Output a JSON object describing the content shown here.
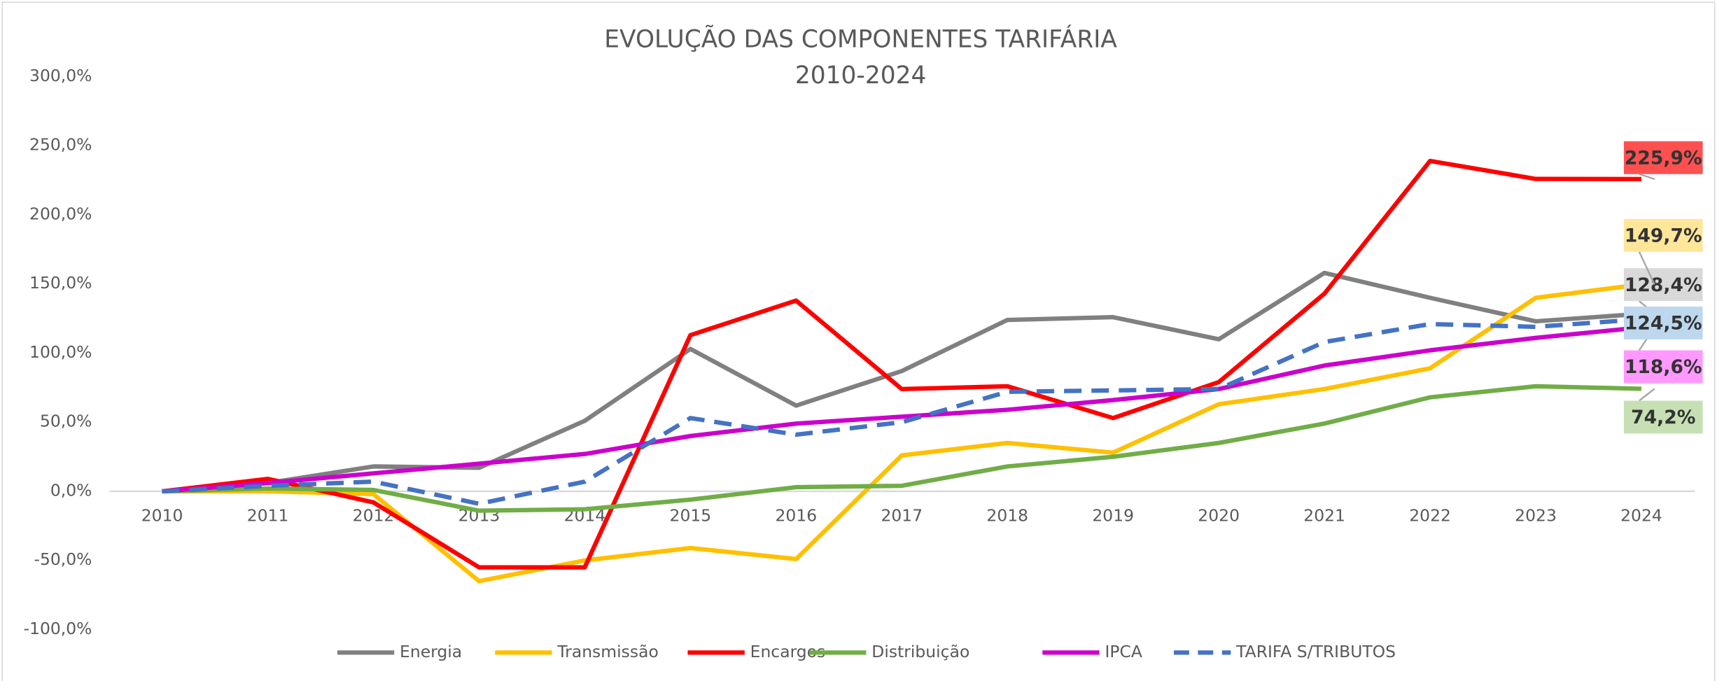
{
  "chart_data": {
    "type": "line",
    "title": "EVOLUÇÃO DAS COMPONENTES TARIFÁRIA",
    "subtitle": "2010-2024",
    "categories": [
      "2010",
      "2011",
      "2012",
      "2013",
      "2014",
      "2015",
      "2016",
      "2017",
      "2018",
      "2019",
      "2020",
      "2021",
      "2022",
      "2023",
      "2024"
    ],
    "series": [
      {
        "name": "Energia",
        "color": "#808080",
        "values": [
          0,
          6,
          18,
          17,
          51,
          103,
          62,
          87,
          124,
          126,
          110,
          158,
          140,
          123,
          128.4
        ],
        "value_labels": [
          null,
          null,
          null,
          null,
          null,
          null,
          null,
          null,
          null,
          null,
          null,
          null,
          null,
          null,
          "128,4%"
        ],
        "label_color": "#d9d9d9"
      },
      {
        "name": "Transmissão",
        "color": "#ffc000",
        "values": [
          0,
          0,
          -2,
          -65,
          -50,
          -41,
          -49,
          26,
          35,
          28,
          63,
          74,
          89,
          140,
          149.7
        ],
        "value_labels": [
          null,
          null,
          null,
          null,
          null,
          null,
          null,
          null,
          null,
          null,
          null,
          null,
          null,
          null,
          "149,7%"
        ],
        "label_color": "#ffe699"
      },
      {
        "name": "Encargos",
        "color": "#ff0000",
        "values": [
          0,
          9,
          -8,
          -55,
          -55,
          113,
          138,
          74,
          76,
          53,
          79,
          143,
          239,
          226,
          225.9
        ],
        "value_labels": [
          null,
          null,
          null,
          null,
          null,
          null,
          null,
          null,
          null,
          null,
          null,
          null,
          null,
          null,
          "225,9%"
        ],
        "label_color": "#ff5050"
      },
      {
        "name": "Distribuição",
        "color": "#70ad47",
        "values": [
          0,
          2,
          1,
          -14,
          -13,
          -6,
          3,
          4,
          18,
          25,
          35,
          49,
          68,
          76,
          74.2
        ],
        "value_labels": [
          null,
          null,
          null,
          null,
          null,
          null,
          null,
          null,
          null,
          null,
          null,
          null,
          null,
          null,
          "74,2%"
        ],
        "label_color": "#c6e0b4"
      },
      {
        "name": "IPCA",
        "color": "#cc00cc",
        "values": [
          0,
          6,
          13,
          20,
          27,
          40,
          49,
          54,
          59,
          66,
          74,
          91,
          102,
          111,
          118.6
        ],
        "value_labels": [
          null,
          null,
          null,
          null,
          null,
          null,
          null,
          null,
          null,
          null,
          null,
          null,
          null,
          null,
          "118,6%"
        ],
        "label_color": "#ff99ff"
      },
      {
        "name": "TARIFA S/TRIBUTOS",
        "color": "#4472c4",
        "dash": true,
        "values": [
          0,
          4,
          7,
          -9,
          7,
          53,
          41,
          50,
          72,
          73,
          74,
          108,
          121,
          119,
          124.5
        ],
        "value_labels": [
          null,
          null,
          null,
          null,
          null,
          null,
          null,
          null,
          null,
          null,
          null,
          null,
          null,
          null,
          "124,5%"
        ],
        "label_color": "#bdd7ee"
      }
    ],
    "ylim": [
      -100,
      300
    ],
    "yticks": [
      {
        "value": -100,
        "label": "-100,0%"
      },
      {
        "value": -50,
        "label": "-50,0%"
      },
      {
        "value": 0,
        "label": "0,0%"
      },
      {
        "value": 50,
        "label": "50,0%"
      },
      {
        "value": 100,
        "label": "100,0%"
      },
      {
        "value": 150,
        "label": "150,0%"
      },
      {
        "value": 200,
        "label": "200,0%"
      },
      {
        "value": 250,
        "label": "250,0%"
      },
      {
        "value": 300,
        "label": "300,0%"
      }
    ],
    "grid": false,
    "legend": "bottom"
  }
}
